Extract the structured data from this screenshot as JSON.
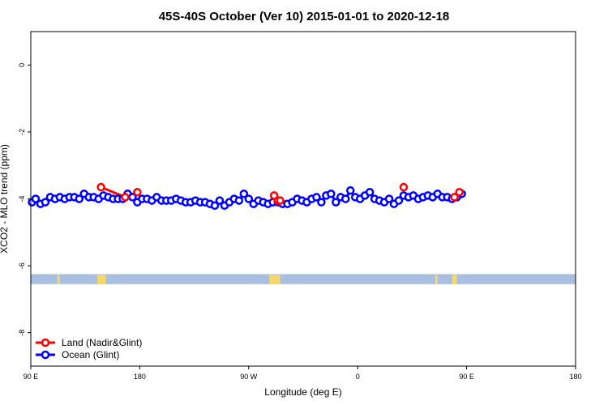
{
  "chart_data": {
    "type": "line",
    "title": "45S-40S October (Ver 10)   2015-01-01 to 2020-12-18",
    "xlabel": "Longitude (deg E)",
    "ylabel": "XCO2 - MLO trend (ppm)",
    "xlim": [
      90,
      450
    ],
    "ylim": [
      -9,
      1
    ],
    "x_ticks": [
      {
        "value": 90,
        "label": "90 E"
      },
      {
        "value": 180,
        "label": "180"
      },
      {
        "value": 270,
        "label": "90 W"
      },
      {
        "value": 360,
        "label": "0"
      },
      {
        "value": 450,
        "label": "90 E"
      },
      {
        "value": 540,
        "label": "180"
      }
    ],
    "y_ticks": [
      {
        "value": 0,
        "label": "0"
      },
      {
        "value": -2,
        "label": "-2"
      },
      {
        "value": -4,
        "label": "-4"
      },
      {
        "value": -6,
        "label": "-6"
      },
      {
        "value": -8,
        "label": "-8"
      }
    ],
    "grid": false,
    "legend_position": "bottom-left",
    "series": [
      {
        "name": "Land (Nadir&Glint)",
        "color": "#ff0000",
        "segments": [
          {
            "x": [
              148,
              168,
              178
            ],
            "y": [
              -3.65,
              -3.95,
              -3.8
            ]
          },
          {
            "x": [
              291,
              294,
              296
            ],
            "y": [
              -3.9,
              -4.05,
              -4.05
            ]
          },
          {
            "x": [
              398
            ],
            "y": [
              -3.65
            ]
          },
          {
            "x": [
              440,
              444
            ],
            "y": [
              -3.95,
              -3.8
            ]
          }
        ]
      },
      {
        "name": "Ocean (Glint)",
        "color": "#0000ff",
        "x": [
          91,
          94,
          98,
          102,
          106,
          110,
          114,
          118,
          122,
          126,
          130,
          134,
          138,
          142,
          146,
          150,
          154,
          158,
          162,
          166,
          170,
          174,
          178,
          182,
          186,
          190,
          194,
          198,
          202,
          206,
          210,
          214,
          218,
          222,
          226,
          230,
          234,
          238,
          242,
          246,
          250,
          254,
          258,
          262,
          266,
          270,
          274,
          278,
          282,
          286,
          290,
          294,
          298,
          302,
          306,
          310,
          314,
          318,
          322,
          326,
          330,
          334,
          338,
          342,
          346,
          350,
          354,
          358,
          362,
          366,
          370,
          374,
          378,
          382,
          386,
          390,
          394,
          398,
          402,
          406,
          410,
          414,
          418,
          422,
          426,
          430,
          434,
          438,
          442,
          446
        ],
        "y": [
          -4.1,
          -4.0,
          -4.15,
          -4.1,
          -3.95,
          -4.0,
          -3.95,
          -4.0,
          -3.95,
          -3.95,
          -4.0,
          -3.85,
          -3.95,
          -3.95,
          -4.0,
          -3.9,
          -3.95,
          -4.0,
          -4.0,
          -4.0,
          -3.85,
          -3.95,
          -4.1,
          -4.0,
          -4.0,
          -4.05,
          -3.95,
          -4.05,
          -4.05,
          -4.05,
          -4.0,
          -4.05,
          -4.1,
          -4.1,
          -4.05,
          -4.1,
          -4.1,
          -4.15,
          -4.2,
          -4.05,
          -4.2,
          -4.1,
          -4.0,
          -4.05,
          -3.85,
          -4.0,
          -4.15,
          -4.05,
          -4.1,
          -4.15,
          -4.1,
          -4.1,
          -4.15,
          -4.15,
          -4.1,
          -4.0,
          -4.05,
          -4.1,
          -4.0,
          -3.95,
          -4.1,
          -3.9,
          -3.85,
          -4.1,
          -3.95,
          -4.0,
          -3.75,
          -3.95,
          -4.0,
          -3.9,
          -3.8,
          -4.0,
          -4.05,
          -4.1,
          -4.0,
          -4.15,
          -4.05,
          -3.9,
          -3.95,
          -3.9,
          -4.0,
          -3.95,
          -3.9,
          -3.95,
          -3.85,
          -3.95,
          -3.95,
          -4.0,
          -3.95,
          -3.85
        ]
      }
    ],
    "land_mask_band": {
      "y_range": [
        -6.55,
        -6.25
      ],
      "ocean_color": "#a8bfe0",
      "land_color": "#f5d76e",
      "land_intervals": [
        [
          112,
          114
        ],
        [
          145,
          152
        ],
        [
          287,
          296
        ],
        [
          424,
          426
        ],
        [
          438,
          442
        ]
      ]
    }
  }
}
